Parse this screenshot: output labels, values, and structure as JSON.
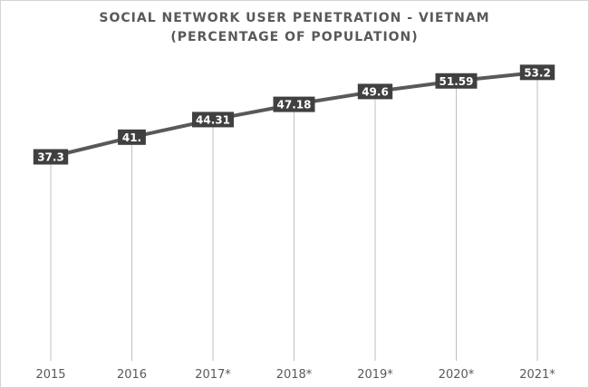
{
  "chart_data": {
    "type": "line",
    "title_line1": "SOCIAL NETWORK USER PENETRATION - VIETNAM",
    "title_line2": "(PERCENTAGE OF POPULATION)",
    "categories": [
      "2015",
      "2016",
      "2017*",
      "2018*",
      "2019*",
      "2020*",
      "2021*"
    ],
    "values": [
      37.3,
      41.0,
      44.31,
      47.18,
      49.6,
      51.59,
      53.2
    ],
    "data_labels": [
      "37.3",
      "41.",
      "44.31",
      "47.18",
      "49.6",
      "51.59",
      "53.2"
    ],
    "xlabel": "",
    "ylabel": "",
    "line_color": "#595959",
    "label_bg_color": "#404040",
    "label_text_color": "#ffffff",
    "drop_line_color": "#bfbfbf",
    "grid": false,
    "legend": "none"
  }
}
